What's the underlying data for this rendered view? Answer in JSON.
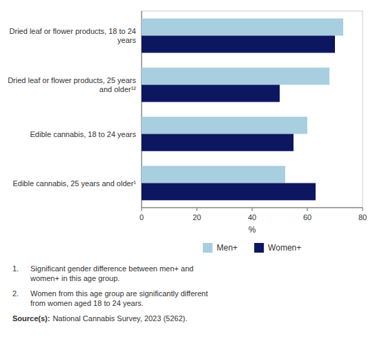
{
  "chart_data": {
    "type": "bar",
    "orientation": "horizontal",
    "categories": [
      "Dried leaf or flower products, 18 to 24 years",
      "Dried leaf or flower products, 25 years and older¹²",
      "Edible cannabis, 18 to 24 years",
      "Edible cannabis, 25 years and older¹"
    ],
    "series": [
      {
        "name": "Men+",
        "color": "#a8cfe0",
        "values": [
          73,
          68,
          60,
          52
        ]
      },
      {
        "name": "Women+",
        "color": "#0d1760",
        "values": [
          70,
          50,
          55,
          63
        ]
      }
    ],
    "xlim": [
      0,
      80
    ],
    "xticks": [
      0,
      20,
      40,
      60,
      80
    ],
    "xlabel": "%",
    "grid": false,
    "legend": "bottom",
    "annotations": [
      "1.",
      "Significant gender difference between men+ and\nwomen+ in this age group.",
      "2.",
      "Women from this age group are significantly different\nfrom women aged 18 to 24 years.",
      "Source(s):",
      "National Cannabis Survey, 2023 (5262)."
    ]
  }
}
